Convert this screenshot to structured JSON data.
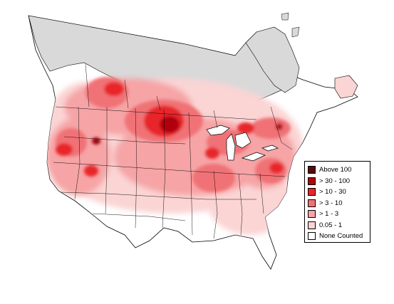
{
  "legend": {
    "items": [
      {
        "label": "Above 100",
        "color": "#5a0a0a"
      },
      {
        "label": "> 30 - 100",
        "color": "#b0060b"
      },
      {
        "label": "> 10 - 30",
        "color": "#e8262a"
      },
      {
        "label": "> 3 - 10",
        "color": "#f07276"
      },
      {
        "label": "> 1 - 3",
        "color": "#f6a4a6"
      },
      {
        "label": "0.05 - 1",
        "color": "#fbd4d4"
      },
      {
        "label": "None Counted",
        "color": "#ffffff"
      }
    ]
  },
  "map": {
    "uncounted_color": "#d9d9d9",
    "border_color": "#000000"
  }
}
